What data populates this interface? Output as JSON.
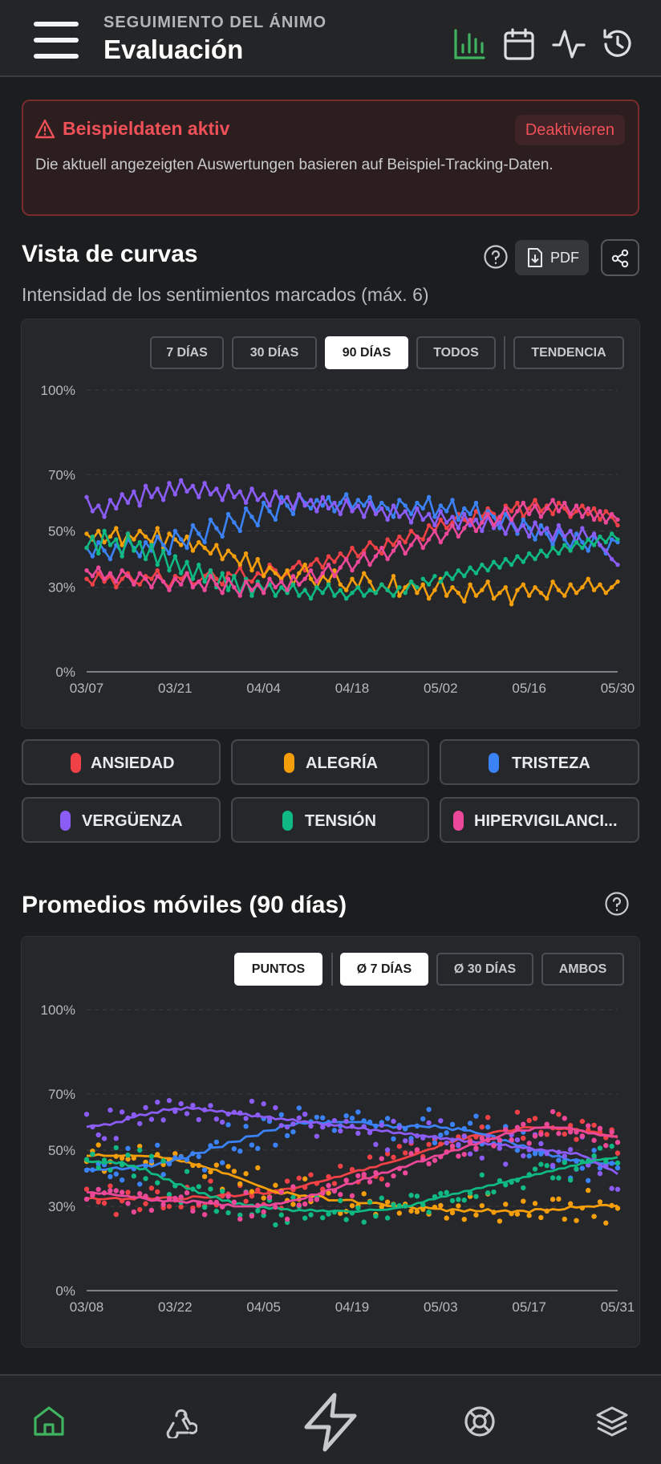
{
  "header": {
    "subtitle": "SEGUIMIENTO DEL ÁNIMO",
    "title": "Evaluación",
    "icons": [
      "menu-icon",
      "bar-chart-icon",
      "calendar-icon",
      "activity-icon",
      "history-icon"
    ],
    "active_icon_color": "#3fb35f"
  },
  "banner": {
    "title": "Beispieldaten aktiv",
    "action": "Deaktivieren",
    "text": "Die aktuell angezeigten Auswertungen basieren auf Beispiel-Tracking-Daten.",
    "color": "#f05058"
  },
  "curves": {
    "title": "Vista de curvas",
    "subtitle": "Intensidad de los sentimientos marcados (máx. 6)",
    "pdf_label": "PDF",
    "ranges": [
      "7 DÍAS",
      "30 DÍAS",
      "90 DÍAS",
      "TODOS"
    ],
    "active_range": "90 DÍAS",
    "trend_label": "TENDENCIA"
  },
  "legend": [
    {
      "label": "ANSIEDAD",
      "color": "#ef4146"
    },
    {
      "label": "ALEGRÍA",
      "color": "#f59e0b"
    },
    {
      "label": "TRISTEZA",
      "color": "#3b82f6"
    },
    {
      "label": "VERGÜENZA",
      "color": "#8b5cf6"
    },
    {
      "label": "TENSIÓN",
      "color": "#10b981"
    },
    {
      "label": "HIPERVIGILANCI...",
      "color": "#ec4899"
    }
  ],
  "averages": {
    "title": "Promedios móviles (90 días)",
    "modes": [
      "PUNTOS",
      "Ø 7 DÍAS",
      "Ø 30 DÍAS",
      "AMBOS"
    ],
    "active_modes": [
      "PUNTOS",
      "Ø 7 DÍAS"
    ]
  },
  "chart_data": [
    {
      "type": "line",
      "title": "",
      "ylabel": "",
      "y_ticks": [
        "100%",
        "70%",
        "50%",
        "30%",
        "0%"
      ],
      "y_tick_values": [
        100,
        70,
        50,
        30,
        0
      ],
      "ylim": [
        0,
        100
      ],
      "x_ticks": [
        "03/07",
        "03/21",
        "04/04",
        "04/18",
        "05/02",
        "05/16",
        "05/30"
      ],
      "x_range_days": 91,
      "grid": true,
      "series": [
        {
          "name": "ANSIEDAD",
          "values": [
            33,
            31,
            35,
            32,
            34,
            30,
            33,
            35,
            32,
            31,
            34,
            33,
            36,
            32,
            30,
            34,
            33,
            35,
            31,
            32,
            34,
            36,
            33,
            31,
            35,
            34,
            37,
            33,
            32,
            35,
            34,
            38,
            36,
            33,
            35,
            37,
            39,
            36,
            38,
            40,
            37,
            41,
            39,
            42,
            40,
            44,
            41,
            43,
            46,
            44,
            42,
            47,
            45,
            48,
            46,
            50,
            48,
            47,
            52,
            50,
            54,
            51,
            53,
            56,
            54,
            52,
            57,
            55,
            58,
            56,
            53,
            59,
            57,
            60,
            55,
            58,
            61,
            57,
            59,
            56,
            60,
            58,
            55,
            57,
            59,
            56,
            58,
            54,
            57,
            55,
            52
          ]
        },
        {
          "name": "ALEGRÍA",
          "values": [
            49,
            47,
            50,
            46,
            48,
            51,
            45,
            49,
            47,
            50,
            48,
            46,
            51,
            44,
            49,
            47,
            45,
            48,
            43,
            46,
            44,
            42,
            45,
            40,
            43,
            41,
            38,
            42,
            36,
            40,
            34,
            37,
            35,
            33,
            36,
            31,
            35,
            38,
            33,
            30,
            34,
            32,
            36,
            31,
            29,
            33,
            30,
            35,
            32,
            28,
            31,
            29,
            34,
            27,
            30,
            32,
            28,
            31,
            26,
            29,
            33,
            27,
            30,
            28,
            25,
            31,
            27,
            29,
            32,
            26,
            28,
            30,
            24,
            29,
            31,
            27,
            30,
            28,
            26,
            32,
            29,
            27,
            31,
            28,
            30,
            33,
            29,
            31,
            28,
            30,
            32
          ]
        },
        {
          "name": "TRISTEZA",
          "values": [
            44,
            41,
            46,
            43,
            40,
            45,
            42,
            47,
            44,
            41,
            46,
            43,
            48,
            45,
            42,
            50,
            47,
            44,
            52,
            49,
            46,
            54,
            51,
            48,
            56,
            53,
            50,
            58,
            55,
            52,
            60,
            57,
            54,
            62,
            59,
            56,
            63,
            60,
            58,
            61,
            59,
            62,
            57,
            60,
            63,
            58,
            61,
            59,
            62,
            57,
            60,
            58,
            55,
            61,
            59,
            56,
            60,
            58,
            62,
            55,
            59,
            57,
            61,
            54,
            58,
            56,
            60,
            53,
            57,
            55,
            51,
            56,
            53,
            49,
            54,
            51,
            47,
            52,
            49,
            45,
            50,
            47,
            44,
            49,
            46,
            43,
            48,
            45,
            42,
            47,
            46
          ]
        },
        {
          "name": "VERGÜENZA",
          "values": [
            62,
            57,
            59,
            55,
            61,
            58,
            63,
            60,
            64,
            59,
            66,
            62,
            65,
            61,
            67,
            63,
            68,
            64,
            66,
            62,
            67,
            63,
            65,
            61,
            66,
            62,
            64,
            60,
            65,
            61,
            63,
            59,
            64,
            60,
            62,
            58,
            63,
            59,
            61,
            57,
            62,
            58,
            60,
            56,
            61,
            57,
            59,
            55,
            60,
            56,
            58,
            54,
            59,
            55,
            57,
            53,
            58,
            54,
            56,
            52,
            57,
            53,
            55,
            51,
            56,
            52,
            54,
            50,
            55,
            51,
            53,
            49,
            54,
            50,
            52,
            48,
            53,
            49,
            51,
            47,
            52,
            48,
            50,
            46,
            51,
            47,
            49,
            45,
            43,
            40,
            38
          ]
        },
        {
          "name": "TENSIÓN",
          "values": [
            44,
            48,
            42,
            50,
            45,
            47,
            41,
            49,
            43,
            46,
            40,
            45,
            38,
            43,
            36,
            41,
            35,
            39,
            33,
            38,
            32,
            36,
            30,
            35,
            29,
            34,
            28,
            33,
            27,
            32,
            29,
            31,
            27,
            30,
            28,
            31,
            27,
            29,
            26,
            30,
            28,
            31,
            27,
            29,
            26,
            28,
            30,
            27,
            29,
            28,
            31,
            29,
            27,
            30,
            28,
            32,
            30,
            33,
            31,
            34,
            32,
            35,
            33,
            36,
            34,
            37,
            35,
            38,
            36,
            39,
            37,
            40,
            38,
            41,
            39,
            42,
            40,
            43,
            41,
            44,
            42,
            45,
            43,
            46,
            44,
            47,
            45,
            48,
            46,
            49,
            47
          ]
        },
        {
          "name": "HIPERVIGILANCI...",
          "values": [
            36,
            34,
            37,
            33,
            35,
            32,
            36,
            34,
            31,
            35,
            33,
            30,
            34,
            32,
            29,
            33,
            31,
            35,
            30,
            32,
            29,
            34,
            31,
            28,
            33,
            30,
            27,
            32,
            29,
            31,
            28,
            33,
            30,
            32,
            29,
            34,
            31,
            33,
            36,
            32,
            35,
            38,
            34,
            37,
            40,
            36,
            39,
            42,
            38,
            41,
            44,
            40,
            43,
            46,
            42,
            45,
            48,
            44,
            47,
            50,
            46,
            49,
            52,
            48,
            51,
            54,
            50,
            53,
            56,
            52,
            55,
            58,
            54,
            57,
            60,
            56,
            59,
            55,
            58,
            61,
            57,
            60,
            56,
            59,
            55,
            58,
            54,
            57,
            53,
            56,
            54
          ]
        }
      ]
    },
    {
      "type": "scatter",
      "title": "",
      "ylabel": "",
      "y_ticks": [
        "100%",
        "70%",
        "50%",
        "30%",
        "0%"
      ],
      "y_tick_values": [
        100,
        70,
        50,
        30,
        0
      ],
      "ylim": [
        0,
        100
      ],
      "x_ticks": [
        "03/08",
        "03/22",
        "04/05",
        "04/19",
        "05/03",
        "05/17",
        "05/31"
      ],
      "x_range_days": 90,
      "grid": true,
      "overlay": "moving average 7 days"
    }
  ],
  "bottom_nav": {
    "items": [
      "home-icon",
      "webhook-icon",
      "lightning-icon",
      "lifebuoy-icon",
      "layers-icon"
    ],
    "active": "home-icon",
    "active_color": "#3fb35f"
  }
}
